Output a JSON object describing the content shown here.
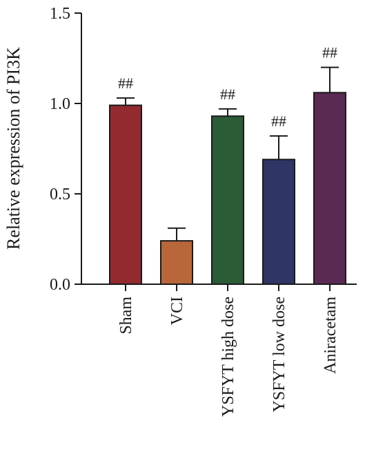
{
  "chart_data": {
    "type": "bar",
    "title": "",
    "xlabel": "",
    "ylabel": "Relative expression of PI3K",
    "ylim": [
      0,
      1.5
    ],
    "yticks": [
      "0.0",
      "0.5",
      "1.0",
      "1.5"
    ],
    "categories": [
      "Sham",
      "VCI",
      "YSFYT high dose",
      "YSFYT low dose",
      "Aniracetam"
    ],
    "values": [
      0.99,
      0.24,
      0.93,
      0.69,
      1.06
    ],
    "errors": [
      0.04,
      0.07,
      0.04,
      0.13,
      0.14
    ],
    "annotations": [
      "##",
      "",
      "##",
      "##",
      "##"
    ],
    "colors": [
      "#922a30",
      "#b8663a",
      "#2b5c36",
      "#2f3564",
      "#5a2a55"
    ],
    "grid": false
  }
}
